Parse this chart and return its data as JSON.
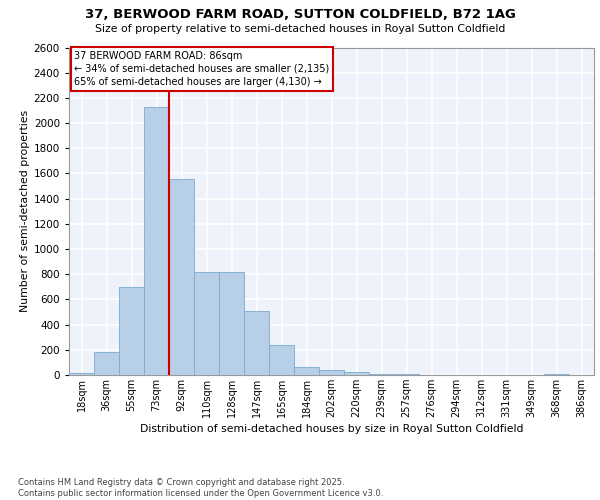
{
  "title": "37, BERWOOD FARM ROAD, SUTTON COLDFIELD, B72 1AG",
  "subtitle": "Size of property relative to semi-detached houses in Royal Sutton Coldfield",
  "xlabel": "Distribution of semi-detached houses by size in Royal Sutton Coldfield",
  "ylabel": "Number of semi-detached properties",
  "categories": [
    "18sqm",
    "36sqm",
    "55sqm",
    "73sqm",
    "92sqm",
    "110sqm",
    "128sqm",
    "147sqm",
    "165sqm",
    "184sqm",
    "202sqm",
    "220sqm",
    "239sqm",
    "257sqm",
    "276sqm",
    "294sqm",
    "312sqm",
    "331sqm",
    "349sqm",
    "368sqm",
    "386sqm"
  ],
  "values": [
    15,
    180,
    700,
    2130,
    1560,
    820,
    820,
    510,
    240,
    65,
    40,
    20,
    10,
    5,
    3,
    2,
    1,
    1,
    0,
    10,
    0
  ],
  "bar_color": "#b8cfe8",
  "bar_edge_color": "#7aaad0",
  "vline_color": "#cc0000",
  "vline_pos": 3.5,
  "annotation_text_line1": "37 BERWOOD FARM ROAD: 86sqm",
  "annotation_text_line2": "← 34% of semi-detached houses are smaller (2,135)",
  "annotation_text_line3": "65% of semi-detached houses are larger (4,130) →",
  "annotation_box_edge_color": "#cc0000",
  "ylim": [
    0,
    2600
  ],
  "yticks": [
    0,
    200,
    400,
    600,
    800,
    1000,
    1200,
    1400,
    1600,
    1800,
    2000,
    2200,
    2400,
    2600
  ],
  "bg_color": "#eef2fa",
  "grid_color": "#ffffff",
  "footer_line1": "Contains HM Land Registry data © Crown copyright and database right 2025.",
  "footer_line2": "Contains public sector information licensed under the Open Government Licence v3.0."
}
